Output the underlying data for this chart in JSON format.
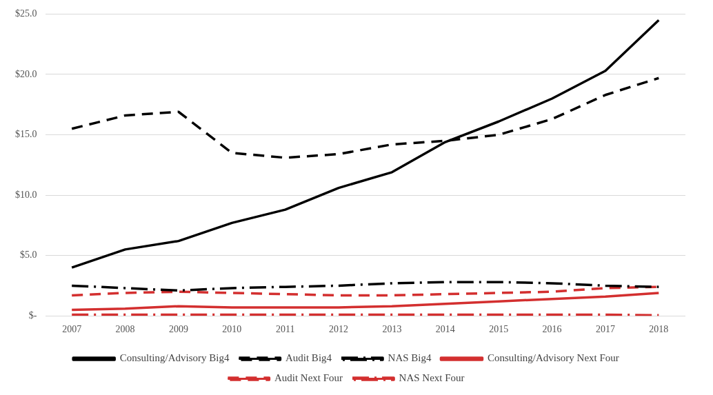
{
  "chart_data": {
    "type": "line",
    "categories": [
      "2007",
      "2008",
      "2009",
      "2010",
      "2011",
      "2012",
      "2013",
      "2014",
      "2015",
      "2016",
      "2017",
      "2018"
    ],
    "ylim": [
      0,
      25
    ],
    "yticks": [
      {
        "value": 0,
        "label": "$-"
      },
      {
        "value": 5,
        "label": "$5.0"
      },
      {
        "value": 10,
        "label": "$10.0"
      },
      {
        "value": 15,
        "label": "$15.0"
      },
      {
        "value": 20,
        "label": "$20.0"
      },
      {
        "value": 25,
        "label": "$25.0"
      }
    ],
    "grid": "y",
    "legend": "bottom",
    "marker": "none",
    "series": [
      {
        "name": "Consulting/Advisory Big4",
        "color": "#000000",
        "line_style": "solid",
        "values": [
          4.0,
          5.5,
          6.2,
          7.7,
          8.8,
          10.6,
          11.9,
          14.4,
          16.1,
          18.0,
          20.3,
          24.5
        ]
      },
      {
        "name": "Audit Big4",
        "color": "#000000",
        "line_style": "dashed",
        "values": [
          15.5,
          16.6,
          16.9,
          13.5,
          13.1,
          13.4,
          14.2,
          14.5,
          15.0,
          16.3,
          18.3,
          19.7
        ]
      },
      {
        "name": "NAS Big4",
        "color": "#000000",
        "line_style": "dotted",
        "values": [
          2.5,
          2.3,
          2.1,
          2.3,
          2.4,
          2.5,
          2.7,
          2.8,
          2.8,
          2.7,
          2.5,
          2.4
        ]
      },
      {
        "name": "Consulting/Advisory Next Four",
        "color": "#d32f2f",
        "line_style": "solid",
        "values": [
          0.5,
          0.6,
          0.8,
          0.7,
          0.7,
          0.7,
          0.8,
          1.0,
          1.2,
          1.4,
          1.6,
          1.9
        ]
      },
      {
        "name": "Audit Next Four",
        "color": "#d32f2f",
        "line_style": "dashed",
        "values": [
          1.7,
          1.9,
          2.0,
          1.9,
          1.8,
          1.7,
          1.7,
          1.8,
          1.9,
          2.0,
          2.3,
          2.4
        ]
      },
      {
        "name": "NAS Next Four",
        "color": "#d32f2f",
        "line_style": "dotted",
        "values": [
          0.1,
          0.1,
          0.1,
          0.1,
          0.1,
          0.1,
          0.1,
          0.1,
          0.1,
          0.1,
          0.1,
          0.05
        ]
      }
    ]
  }
}
